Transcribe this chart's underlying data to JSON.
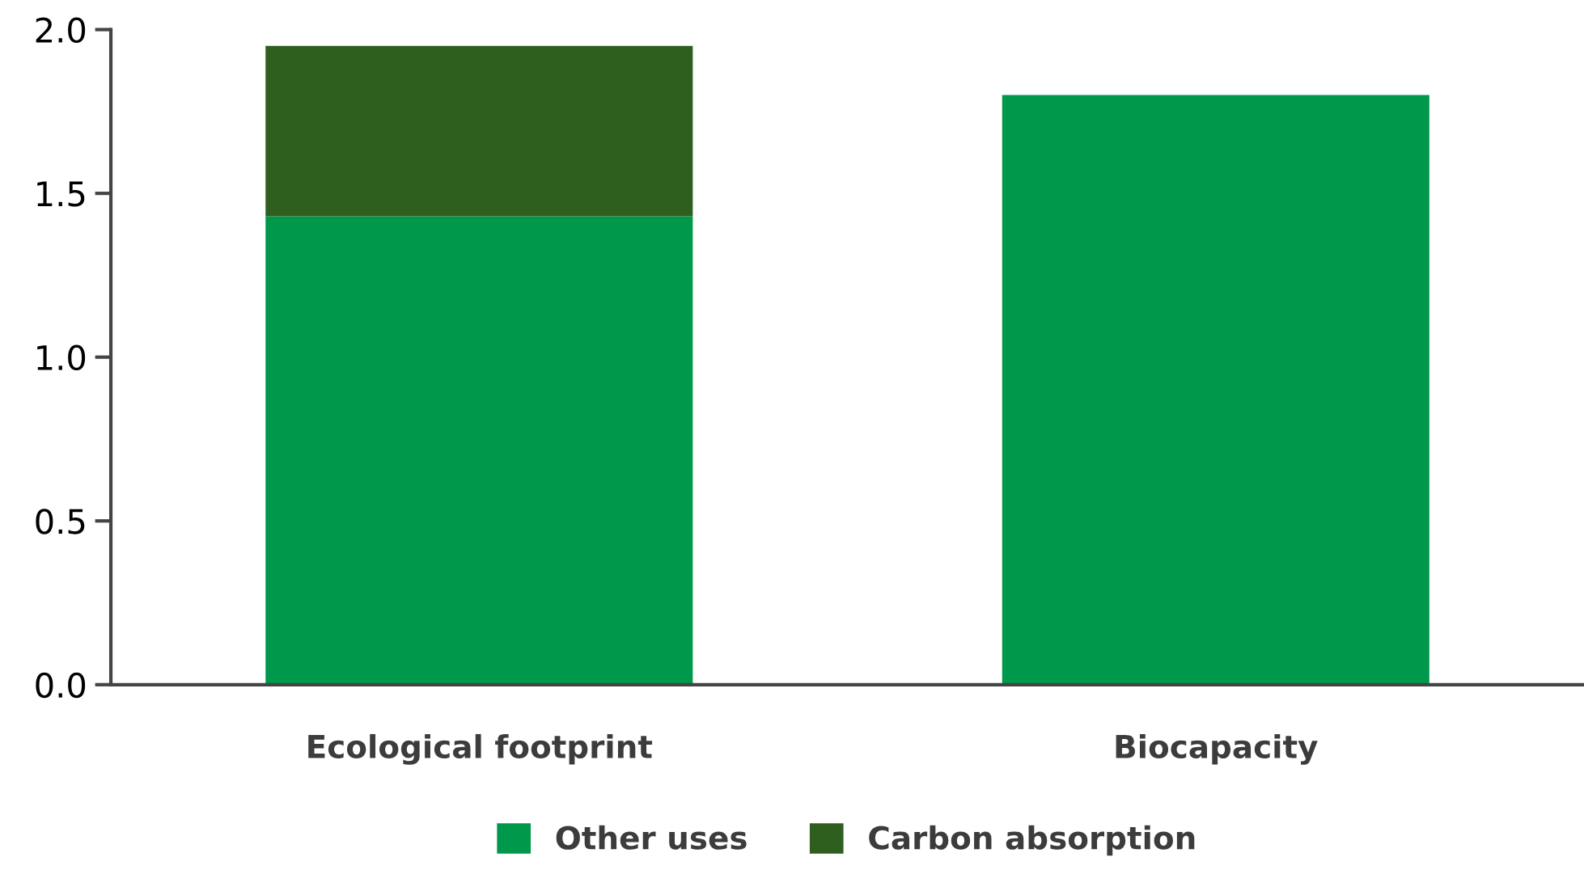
{
  "chart_data": {
    "type": "bar",
    "stacked": true,
    "categories": [
      "Ecological footprint",
      "Biocapacity"
    ],
    "series": [
      {
        "name": "Other uses",
        "color": "#00984a",
        "values": [
          1.43,
          1.8
        ]
      },
      {
        "name": "Carbon absorption",
        "color": "#2e5f1f",
        "values": [
          0.52,
          null
        ]
      }
    ],
    "ylim": [
      0,
      2.0
    ],
    "yticks": [
      {
        "value": 0,
        "label": "0.0"
      },
      {
        "value": 0.5,
        "label": "0.5"
      },
      {
        "value": 1.0,
        "label": "1.0"
      },
      {
        "value": 1.5,
        "label": "1.5"
      },
      {
        "value": 2.0,
        "label": "2.0"
      }
    ],
    "grid": false,
    "legend": "bottom"
  }
}
